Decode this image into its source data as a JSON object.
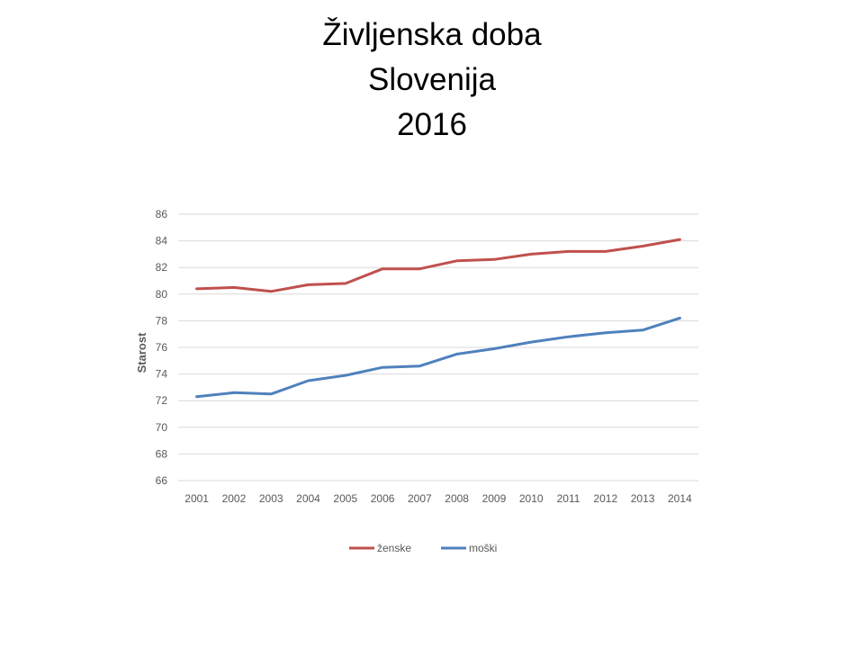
{
  "title": {
    "line1": "Življenska doba",
    "line2": "Slovenija",
    "line3": "2016"
  },
  "chart_data": {
    "type": "line",
    "title": "Življenska doba Slovenija 2016",
    "xlabel": "",
    "ylabel": "Starost",
    "ylim": [
      66,
      86
    ],
    "yticks": [
      66,
      68,
      70,
      72,
      74,
      76,
      78,
      80,
      82,
      84,
      86
    ],
    "categories": [
      "2001",
      "2002",
      "2003",
      "2004",
      "2005",
      "2006",
      "2007",
      "2008",
      "2009",
      "2010",
      "2011",
      "2012",
      "2013",
      "2014"
    ],
    "grid": true,
    "legend_position": "bottom",
    "series": [
      {
        "name": "ženske",
        "color": "#c0504d",
        "values": [
          80.4,
          80.5,
          80.2,
          80.7,
          80.8,
          81.9,
          81.9,
          82.5,
          82.6,
          83.0,
          83.2,
          83.2,
          83.6,
          84.1
        ]
      },
      {
        "name": "moški",
        "color": "#4f81bd",
        "values": [
          72.3,
          72.6,
          72.5,
          73.5,
          73.9,
          74.5,
          74.6,
          75.5,
          75.9,
          76.4,
          76.8,
          77.1,
          77.3,
          78.2
        ]
      }
    ]
  }
}
